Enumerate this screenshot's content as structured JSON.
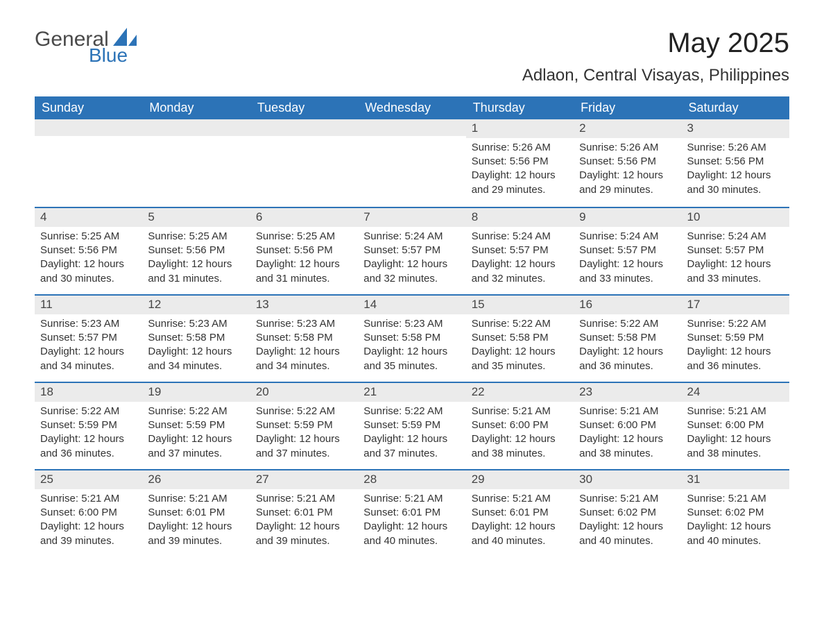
{
  "brand": {
    "word1": "General",
    "word2": "Blue"
  },
  "title": {
    "month": "May 2025",
    "location": "Adlaon, Central Visayas, Philippines"
  },
  "colors": {
    "accent": "#2c73b7",
    "header_text": "#ffffff",
    "daybar_bg": "#ebebeb",
    "body_text": "#333333",
    "background": "#ffffff"
  },
  "calendar": {
    "type": "table",
    "columns": [
      "Sunday",
      "Monday",
      "Tuesday",
      "Wednesday",
      "Thursday",
      "Friday",
      "Saturday"
    ],
    "weeks": [
      [
        null,
        null,
        null,
        null,
        {
          "day": "1",
          "sunrise": "Sunrise: 5:26 AM",
          "sunset": "Sunset: 5:56 PM",
          "daylight1": "Daylight: 12 hours",
          "daylight2": "and 29 minutes."
        },
        {
          "day": "2",
          "sunrise": "Sunrise: 5:26 AM",
          "sunset": "Sunset: 5:56 PM",
          "daylight1": "Daylight: 12 hours",
          "daylight2": "and 29 minutes."
        },
        {
          "day": "3",
          "sunrise": "Sunrise: 5:26 AM",
          "sunset": "Sunset: 5:56 PM",
          "daylight1": "Daylight: 12 hours",
          "daylight2": "and 30 minutes."
        }
      ],
      [
        {
          "day": "4",
          "sunrise": "Sunrise: 5:25 AM",
          "sunset": "Sunset: 5:56 PM",
          "daylight1": "Daylight: 12 hours",
          "daylight2": "and 30 minutes."
        },
        {
          "day": "5",
          "sunrise": "Sunrise: 5:25 AM",
          "sunset": "Sunset: 5:56 PM",
          "daylight1": "Daylight: 12 hours",
          "daylight2": "and 31 minutes."
        },
        {
          "day": "6",
          "sunrise": "Sunrise: 5:25 AM",
          "sunset": "Sunset: 5:56 PM",
          "daylight1": "Daylight: 12 hours",
          "daylight2": "and 31 minutes."
        },
        {
          "day": "7",
          "sunrise": "Sunrise: 5:24 AM",
          "sunset": "Sunset: 5:57 PM",
          "daylight1": "Daylight: 12 hours",
          "daylight2": "and 32 minutes."
        },
        {
          "day": "8",
          "sunrise": "Sunrise: 5:24 AM",
          "sunset": "Sunset: 5:57 PM",
          "daylight1": "Daylight: 12 hours",
          "daylight2": "and 32 minutes."
        },
        {
          "day": "9",
          "sunrise": "Sunrise: 5:24 AM",
          "sunset": "Sunset: 5:57 PM",
          "daylight1": "Daylight: 12 hours",
          "daylight2": "and 33 minutes."
        },
        {
          "day": "10",
          "sunrise": "Sunrise: 5:24 AM",
          "sunset": "Sunset: 5:57 PM",
          "daylight1": "Daylight: 12 hours",
          "daylight2": "and 33 minutes."
        }
      ],
      [
        {
          "day": "11",
          "sunrise": "Sunrise: 5:23 AM",
          "sunset": "Sunset: 5:57 PM",
          "daylight1": "Daylight: 12 hours",
          "daylight2": "and 34 minutes."
        },
        {
          "day": "12",
          "sunrise": "Sunrise: 5:23 AM",
          "sunset": "Sunset: 5:58 PM",
          "daylight1": "Daylight: 12 hours",
          "daylight2": "and 34 minutes."
        },
        {
          "day": "13",
          "sunrise": "Sunrise: 5:23 AM",
          "sunset": "Sunset: 5:58 PM",
          "daylight1": "Daylight: 12 hours",
          "daylight2": "and 34 minutes."
        },
        {
          "day": "14",
          "sunrise": "Sunrise: 5:23 AM",
          "sunset": "Sunset: 5:58 PM",
          "daylight1": "Daylight: 12 hours",
          "daylight2": "and 35 minutes."
        },
        {
          "day": "15",
          "sunrise": "Sunrise: 5:22 AM",
          "sunset": "Sunset: 5:58 PM",
          "daylight1": "Daylight: 12 hours",
          "daylight2": "and 35 minutes."
        },
        {
          "day": "16",
          "sunrise": "Sunrise: 5:22 AM",
          "sunset": "Sunset: 5:58 PM",
          "daylight1": "Daylight: 12 hours",
          "daylight2": "and 36 minutes."
        },
        {
          "day": "17",
          "sunrise": "Sunrise: 5:22 AM",
          "sunset": "Sunset: 5:59 PM",
          "daylight1": "Daylight: 12 hours",
          "daylight2": "and 36 minutes."
        }
      ],
      [
        {
          "day": "18",
          "sunrise": "Sunrise: 5:22 AM",
          "sunset": "Sunset: 5:59 PM",
          "daylight1": "Daylight: 12 hours",
          "daylight2": "and 36 minutes."
        },
        {
          "day": "19",
          "sunrise": "Sunrise: 5:22 AM",
          "sunset": "Sunset: 5:59 PM",
          "daylight1": "Daylight: 12 hours",
          "daylight2": "and 37 minutes."
        },
        {
          "day": "20",
          "sunrise": "Sunrise: 5:22 AM",
          "sunset": "Sunset: 5:59 PM",
          "daylight1": "Daylight: 12 hours",
          "daylight2": "and 37 minutes."
        },
        {
          "day": "21",
          "sunrise": "Sunrise: 5:22 AM",
          "sunset": "Sunset: 5:59 PM",
          "daylight1": "Daylight: 12 hours",
          "daylight2": "and 37 minutes."
        },
        {
          "day": "22",
          "sunrise": "Sunrise: 5:21 AM",
          "sunset": "Sunset: 6:00 PM",
          "daylight1": "Daylight: 12 hours",
          "daylight2": "and 38 minutes."
        },
        {
          "day": "23",
          "sunrise": "Sunrise: 5:21 AM",
          "sunset": "Sunset: 6:00 PM",
          "daylight1": "Daylight: 12 hours",
          "daylight2": "and 38 minutes."
        },
        {
          "day": "24",
          "sunrise": "Sunrise: 5:21 AM",
          "sunset": "Sunset: 6:00 PM",
          "daylight1": "Daylight: 12 hours",
          "daylight2": "and 38 minutes."
        }
      ],
      [
        {
          "day": "25",
          "sunrise": "Sunrise: 5:21 AM",
          "sunset": "Sunset: 6:00 PM",
          "daylight1": "Daylight: 12 hours",
          "daylight2": "and 39 minutes."
        },
        {
          "day": "26",
          "sunrise": "Sunrise: 5:21 AM",
          "sunset": "Sunset: 6:01 PM",
          "daylight1": "Daylight: 12 hours",
          "daylight2": "and 39 minutes."
        },
        {
          "day": "27",
          "sunrise": "Sunrise: 5:21 AM",
          "sunset": "Sunset: 6:01 PM",
          "daylight1": "Daylight: 12 hours",
          "daylight2": "and 39 minutes."
        },
        {
          "day": "28",
          "sunrise": "Sunrise: 5:21 AM",
          "sunset": "Sunset: 6:01 PM",
          "daylight1": "Daylight: 12 hours",
          "daylight2": "and 40 minutes."
        },
        {
          "day": "29",
          "sunrise": "Sunrise: 5:21 AM",
          "sunset": "Sunset: 6:01 PM",
          "daylight1": "Daylight: 12 hours",
          "daylight2": "and 40 minutes."
        },
        {
          "day": "30",
          "sunrise": "Sunrise: 5:21 AM",
          "sunset": "Sunset: 6:02 PM",
          "daylight1": "Daylight: 12 hours",
          "daylight2": "and 40 minutes."
        },
        {
          "day": "31",
          "sunrise": "Sunrise: 5:21 AM",
          "sunset": "Sunset: 6:02 PM",
          "daylight1": "Daylight: 12 hours",
          "daylight2": "and 40 minutes."
        }
      ]
    ]
  }
}
